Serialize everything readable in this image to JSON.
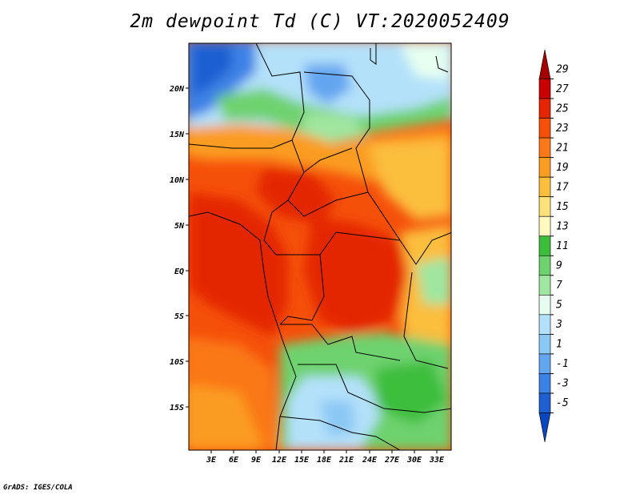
{
  "title": "2m dewpoint Td (C) VT:2020052409",
  "credit": "GrADS: IGES/COLA",
  "lat_labels": [
    "20N",
    "15N",
    "10N",
    "5N",
    "EQ",
    "5S",
    "10S",
    "15S"
  ],
  "lon_labels": [
    "3E",
    "6E",
    "9E",
    "12E",
    "15E",
    "18E",
    "21E",
    "24E",
    "27E",
    "30E",
    "33E"
  ],
  "colorbar": {
    "labels": [
      "29",
      "27",
      "25",
      "23",
      "21",
      "19",
      "17",
      "15",
      "13",
      "11",
      "9",
      "7",
      "5",
      "3",
      "1",
      "-1",
      "-3",
      "-5"
    ],
    "colors": [
      "#a50000",
      "#c80000",
      "#e42600",
      "#f5500a",
      "#fa7819",
      "#fb9c23",
      "#fbbe3c",
      "#fde17a",
      "#fff8bf",
      "#3cbe3c",
      "#6ed26e",
      "#a0e6a0",
      "#e6fff0",
      "#b4e1fa",
      "#8cc8f5",
      "#64a5f0",
      "#3c82e6",
      "#1e5fd2",
      "#0a46be"
    ]
  }
}
